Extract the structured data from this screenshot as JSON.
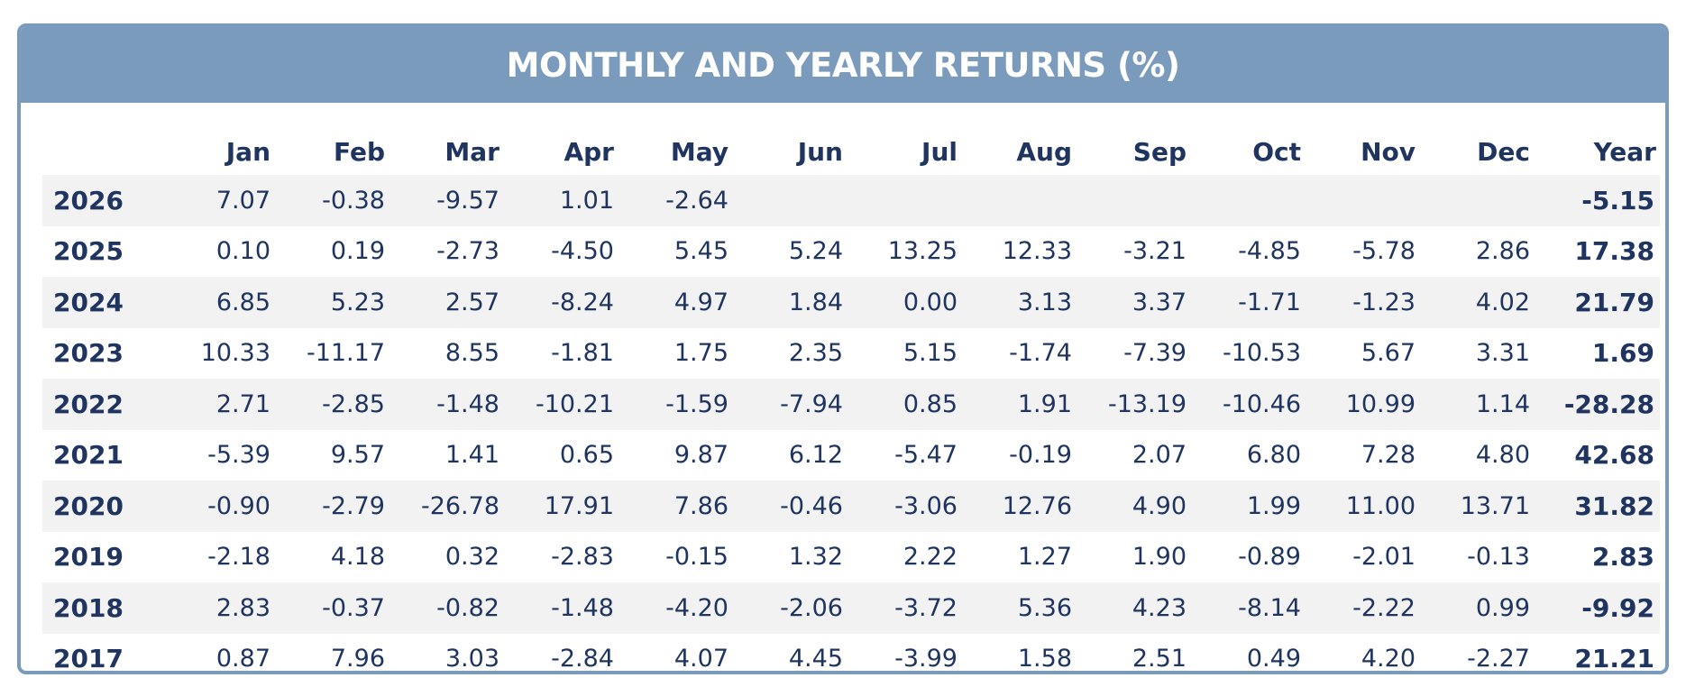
{
  "title": "MONTHLY AND YEARLY RETURNS (%)",
  "colors": {
    "header_bg": "#7b9bbd",
    "text": "#1f3560",
    "stripe": "#f2f2f2"
  },
  "chart_data": {
    "type": "table",
    "title": "MONTHLY AND YEARLY RETURNS (%)",
    "columns": [
      "",
      "Jan",
      "Feb",
      "Mar",
      "Apr",
      "May",
      "Jun",
      "Jul",
      "Aug",
      "Sep",
      "Oct",
      "Nov",
      "Dec",
      "Year"
    ],
    "rows": [
      [
        "2026",
        "7.07",
        "-0.38",
        "-9.57",
        "1.01",
        "-2.64",
        "",
        "",
        "",
        "",
        "",
        "",
        "",
        "-5.15"
      ],
      [
        "2025",
        "0.10",
        "0.19",
        "-2.73",
        "-4.50",
        "5.45",
        "5.24",
        "13.25",
        "12.33",
        "-3.21",
        "-4.85",
        "-5.78",
        "2.86",
        "17.38"
      ],
      [
        "2024",
        "6.85",
        "5.23",
        "2.57",
        "-8.24",
        "4.97",
        "1.84",
        "0.00",
        "3.13",
        "3.37",
        "-1.71",
        "-1.23",
        "4.02",
        "21.79"
      ],
      [
        "2023",
        "10.33",
        "-11.17",
        "8.55",
        "-1.81",
        "1.75",
        "2.35",
        "5.15",
        "-1.74",
        "-7.39",
        "-10.53",
        "5.67",
        "3.31",
        "1.69"
      ],
      [
        "2022",
        "2.71",
        "-2.85",
        "-1.48",
        "-10.21",
        "-1.59",
        "-7.94",
        "0.85",
        "1.91",
        "-13.19",
        "-10.46",
        "10.99",
        "1.14",
        "-28.28"
      ],
      [
        "2021",
        "-5.39",
        "9.57",
        "1.41",
        "0.65",
        "9.87",
        "6.12",
        "-5.47",
        "-0.19",
        "2.07",
        "6.80",
        "7.28",
        "4.80",
        "42.68"
      ],
      [
        "2020",
        "-0.90",
        "-2.79",
        "-26.78",
        "17.91",
        "7.86",
        "-0.46",
        "-3.06",
        "12.76",
        "4.90",
        "1.99",
        "11.00",
        "13.71",
        "31.82"
      ],
      [
        "2019",
        "-2.18",
        "4.18",
        "0.32",
        "-2.83",
        "-0.15",
        "1.32",
        "2.22",
        "1.27",
        "1.90",
        "-0.89",
        "-2.01",
        "-0.13",
        "2.83"
      ],
      [
        "2018",
        "2.83",
        "-0.37",
        "-0.82",
        "-1.48",
        "-4.20",
        "-2.06",
        "-3.72",
        "5.36",
        "4.23",
        "-8.14",
        "-2.22",
        "0.99",
        "-9.92"
      ],
      [
        "2017",
        "0.87",
        "7.96",
        "3.03",
        "-2.84",
        "4.07",
        "4.45",
        "-3.99",
        "1.58",
        "2.51",
        "0.49",
        "4.20",
        "-2.27",
        "21.21"
      ]
    ]
  }
}
